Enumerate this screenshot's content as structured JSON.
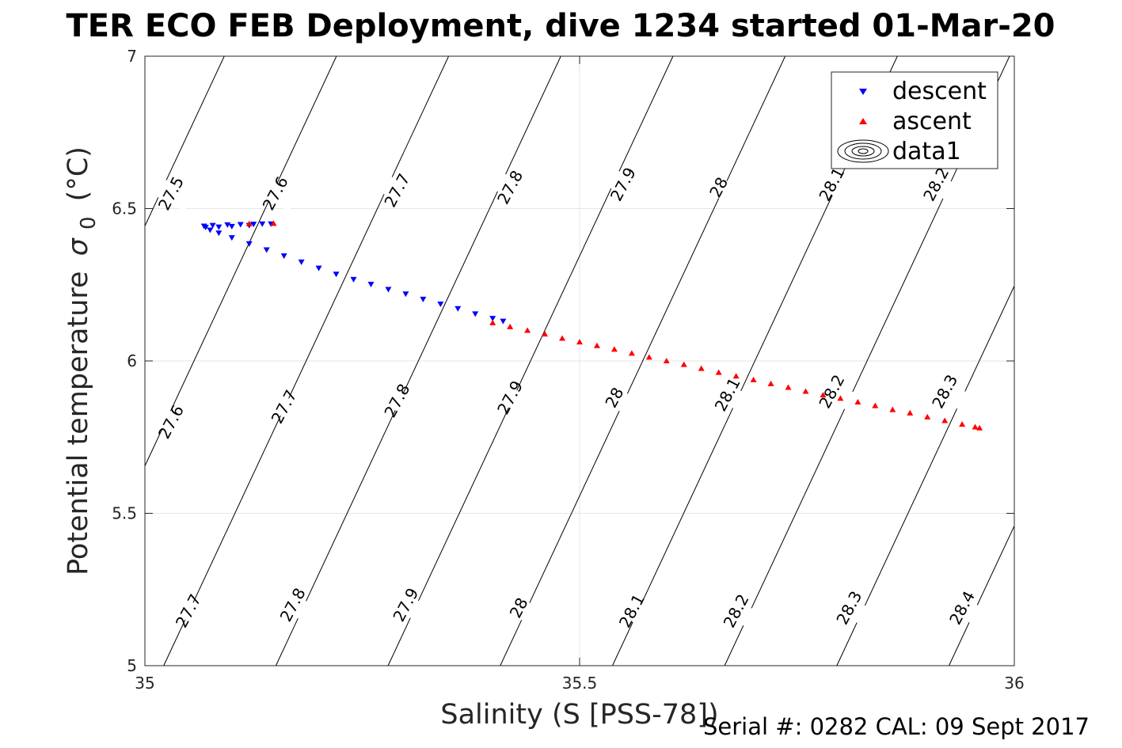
{
  "title": "TER ECO FEB Deployment, dive 1234 started 01-Mar-20",
  "footer": "Serial #: 0282  CAL: 09 Sept 2017",
  "chart_data": {
    "type": "scatter",
    "title": "TER ECO FEB Deployment, dive 1234 started 01-Mar-20",
    "xlabel": "Salinity (S [PSS-78])",
    "ylabel_main": "Potential temperature",
    "ylabel_symbol": "σ",
    "ylabel_sub": "0",
    "ylabel_unit": "(°C)",
    "xlim": [
      35,
      36
    ],
    "ylim": [
      5,
      7
    ],
    "xticks": [
      "35",
      "35.5",
      "36"
    ],
    "yticks": [
      "5",
      "5.5",
      "6",
      "6.5",
      "7"
    ],
    "grid": true,
    "legend_position": "top-right",
    "legend": [
      {
        "label": "descent",
        "marker": "triangle-down",
        "color": "#0000ff"
      },
      {
        "label": "ascent",
        "marker": "triangle-up",
        "color": "#ff0000"
      },
      {
        "label": "data1",
        "marker": "contour-ellipses",
        "color": "#000000"
      }
    ],
    "series": [
      {
        "name": "descent",
        "color": "#0000ff",
        "marker": "triangle-down",
        "points": [
          [
            35.068,
            6.443
          ],
          [
            35.078,
            6.445
          ],
          [
            35.095,
            6.447
          ],
          [
            35.11,
            6.448
          ],
          [
            35.125,
            6.449
          ],
          [
            35.135,
            6.45
          ],
          [
            35.145,
            6.45
          ],
          [
            35.12,
            6.445
          ],
          [
            35.1,
            6.442
          ],
          [
            35.085,
            6.44
          ],
          [
            35.07,
            6.439
          ],
          [
            35.075,
            6.43
          ],
          [
            35.085,
            6.42
          ],
          [
            35.1,
            6.405
          ],
          [
            35.12,
            6.385
          ],
          [
            35.14,
            6.365
          ],
          [
            35.16,
            6.345
          ],
          [
            35.18,
            6.325
          ],
          [
            35.2,
            6.305
          ],
          [
            35.22,
            6.285
          ],
          [
            35.24,
            6.268
          ],
          [
            35.26,
            6.252
          ],
          [
            35.28,
            6.235
          ],
          [
            35.3,
            6.22
          ],
          [
            35.32,
            6.203
          ],
          [
            35.34,
            6.187
          ],
          [
            35.36,
            6.172
          ],
          [
            35.38,
            6.155
          ],
          [
            35.4,
            6.14
          ],
          [
            35.412,
            6.131
          ]
        ]
      },
      {
        "name": "ascent",
        "color": "#ff0000",
        "marker": "triangle-up",
        "points": [
          [
            35.12,
            6.45
          ],
          [
            35.148,
            6.451
          ],
          [
            35.4,
            6.125
          ],
          [
            35.42,
            6.112
          ],
          [
            35.44,
            6.1
          ],
          [
            35.46,
            6.088
          ],
          [
            35.48,
            6.074
          ],
          [
            35.5,
            6.062
          ],
          [
            35.52,
            6.05
          ],
          [
            35.54,
            6.038
          ],
          [
            35.56,
            6.025
          ],
          [
            35.58,
            6.012
          ],
          [
            35.6,
            6.0
          ],
          [
            35.62,
            5.988
          ],
          [
            35.64,
            5.975
          ],
          [
            35.66,
            5.962
          ],
          [
            35.68,
            5.95
          ],
          [
            35.7,
            5.938
          ],
          [
            35.72,
            5.925
          ],
          [
            35.74,
            5.913
          ],
          [
            35.76,
            5.9
          ],
          [
            35.78,
            5.888
          ],
          [
            35.8,
            5.877
          ],
          [
            35.82,
            5.865
          ],
          [
            35.84,
            5.853
          ],
          [
            35.86,
            5.84
          ],
          [
            35.88,
            5.829
          ],
          [
            35.9,
            5.816
          ],
          [
            35.92,
            5.804
          ],
          [
            35.94,
            5.792
          ],
          [
            35.955,
            5.783
          ],
          [
            35.96,
            5.78
          ]
        ]
      }
    ],
    "contours": [
      {
        "level": "27.5",
        "labels": [
          [
            35.03,
            6.55
          ]
        ]
      },
      {
        "level": "27.6",
        "labels": [
          [
            35.15,
            6.55
          ],
          [
            35.03,
            5.8
          ]
        ]
      },
      {
        "level": "27.7",
        "labels": [
          [
            35.29,
            6.56
          ],
          [
            35.16,
            5.85
          ],
          [
            35.05,
            5.18
          ]
        ]
      },
      {
        "level": "27.8",
        "labels": [
          [
            35.42,
            6.57
          ],
          [
            35.29,
            5.87
          ],
          [
            35.17,
            5.2
          ]
        ]
      },
      {
        "level": "27.9",
        "labels": [
          [
            35.55,
            6.58
          ],
          [
            35.42,
            5.88
          ],
          [
            35.3,
            5.2
          ]
        ]
      },
      {
        "level": "28",
        "labels": [
          [
            35.66,
            6.57
          ],
          [
            35.54,
            5.88
          ],
          [
            35.43,
            5.19
          ]
        ]
      },
      {
        "level": "28.1",
        "labels": [
          [
            35.79,
            6.58
          ],
          [
            35.67,
            5.89
          ],
          [
            35.56,
            5.18
          ]
        ]
      },
      {
        "level": "28.2",
        "labels": [
          [
            35.91,
            6.58
          ],
          [
            35.79,
            5.9
          ],
          [
            35.68,
            5.18
          ]
        ]
      },
      {
        "level": "28.3",
        "labels": [
          [
            35.92,
            5.9
          ],
          [
            35.81,
            5.19
          ]
        ]
      },
      {
        "level": "28.4",
        "labels": [
          [
            35.94,
            5.19
          ]
        ]
      }
    ]
  }
}
